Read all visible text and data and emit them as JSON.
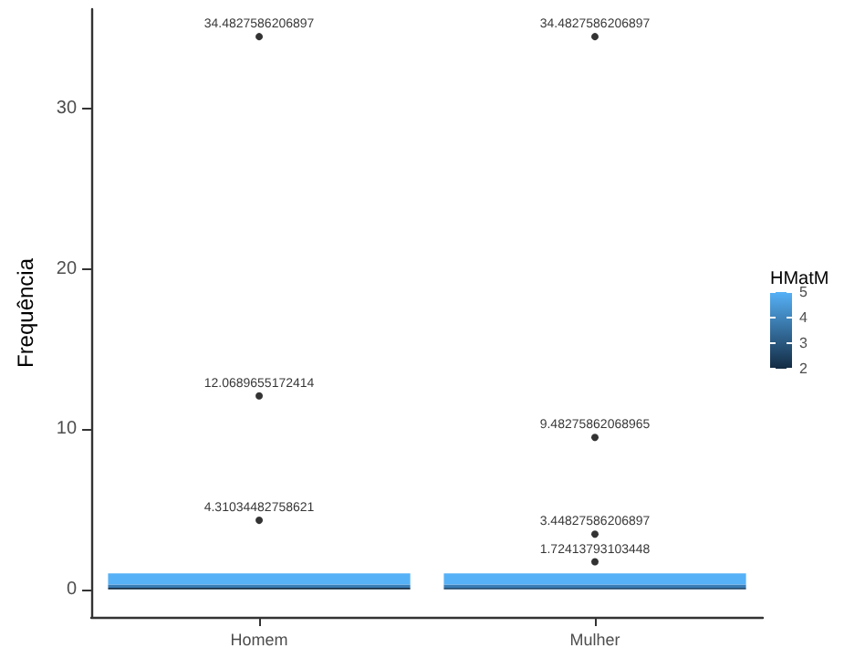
{
  "chart_data": {
    "type": "bar",
    "stacked": true,
    "ylabel": "Frequência",
    "clabel": "HMatM",
    "clim": [
      2,
      5
    ],
    "cticks": [
      2,
      3,
      4,
      5
    ],
    "categories": [
      "Homem",
      "Mulher"
    ],
    "series": [
      {
        "color": "#132b43",
        "values": [
          0.1,
          null
        ]
      },
      {
        "color": "#234d70",
        "values": [
          null,
          0.1
        ]
      },
      {
        "color": "#3a7db5",
        "values": [
          0.2,
          0.2
        ]
      },
      {
        "color": "#56b1f7",
        "values": [
          0.7,
          0.7
        ]
      },
      {
        "type": "scatter",
        "color": "#000000",
        "marker": "circle",
        "x": [
          "Homem",
          "Homem",
          "Homem",
          "Mulher",
          "Mulher",
          "Mulher",
          "Mulher"
        ],
        "values": [
          34.4827586206897,
          12.0689655172414,
          4.31034482758621,
          34.4827586206897,
          9.48275862068965,
          3.44827586206897,
          1.72413793103448
        ],
        "value_labels": [
          "34.4827586206897",
          "12.0689655172414",
          "4.31034482758621",
          "34.4827586206897",
          "9.48275862068965",
          "3.44827586206897",
          "1.72413793103448"
        ]
      }
    ],
    "ylim": [
      -1.72,
      36.2
    ],
    "yticks": [
      0,
      10,
      20,
      30
    ],
    "grid": false
  }
}
